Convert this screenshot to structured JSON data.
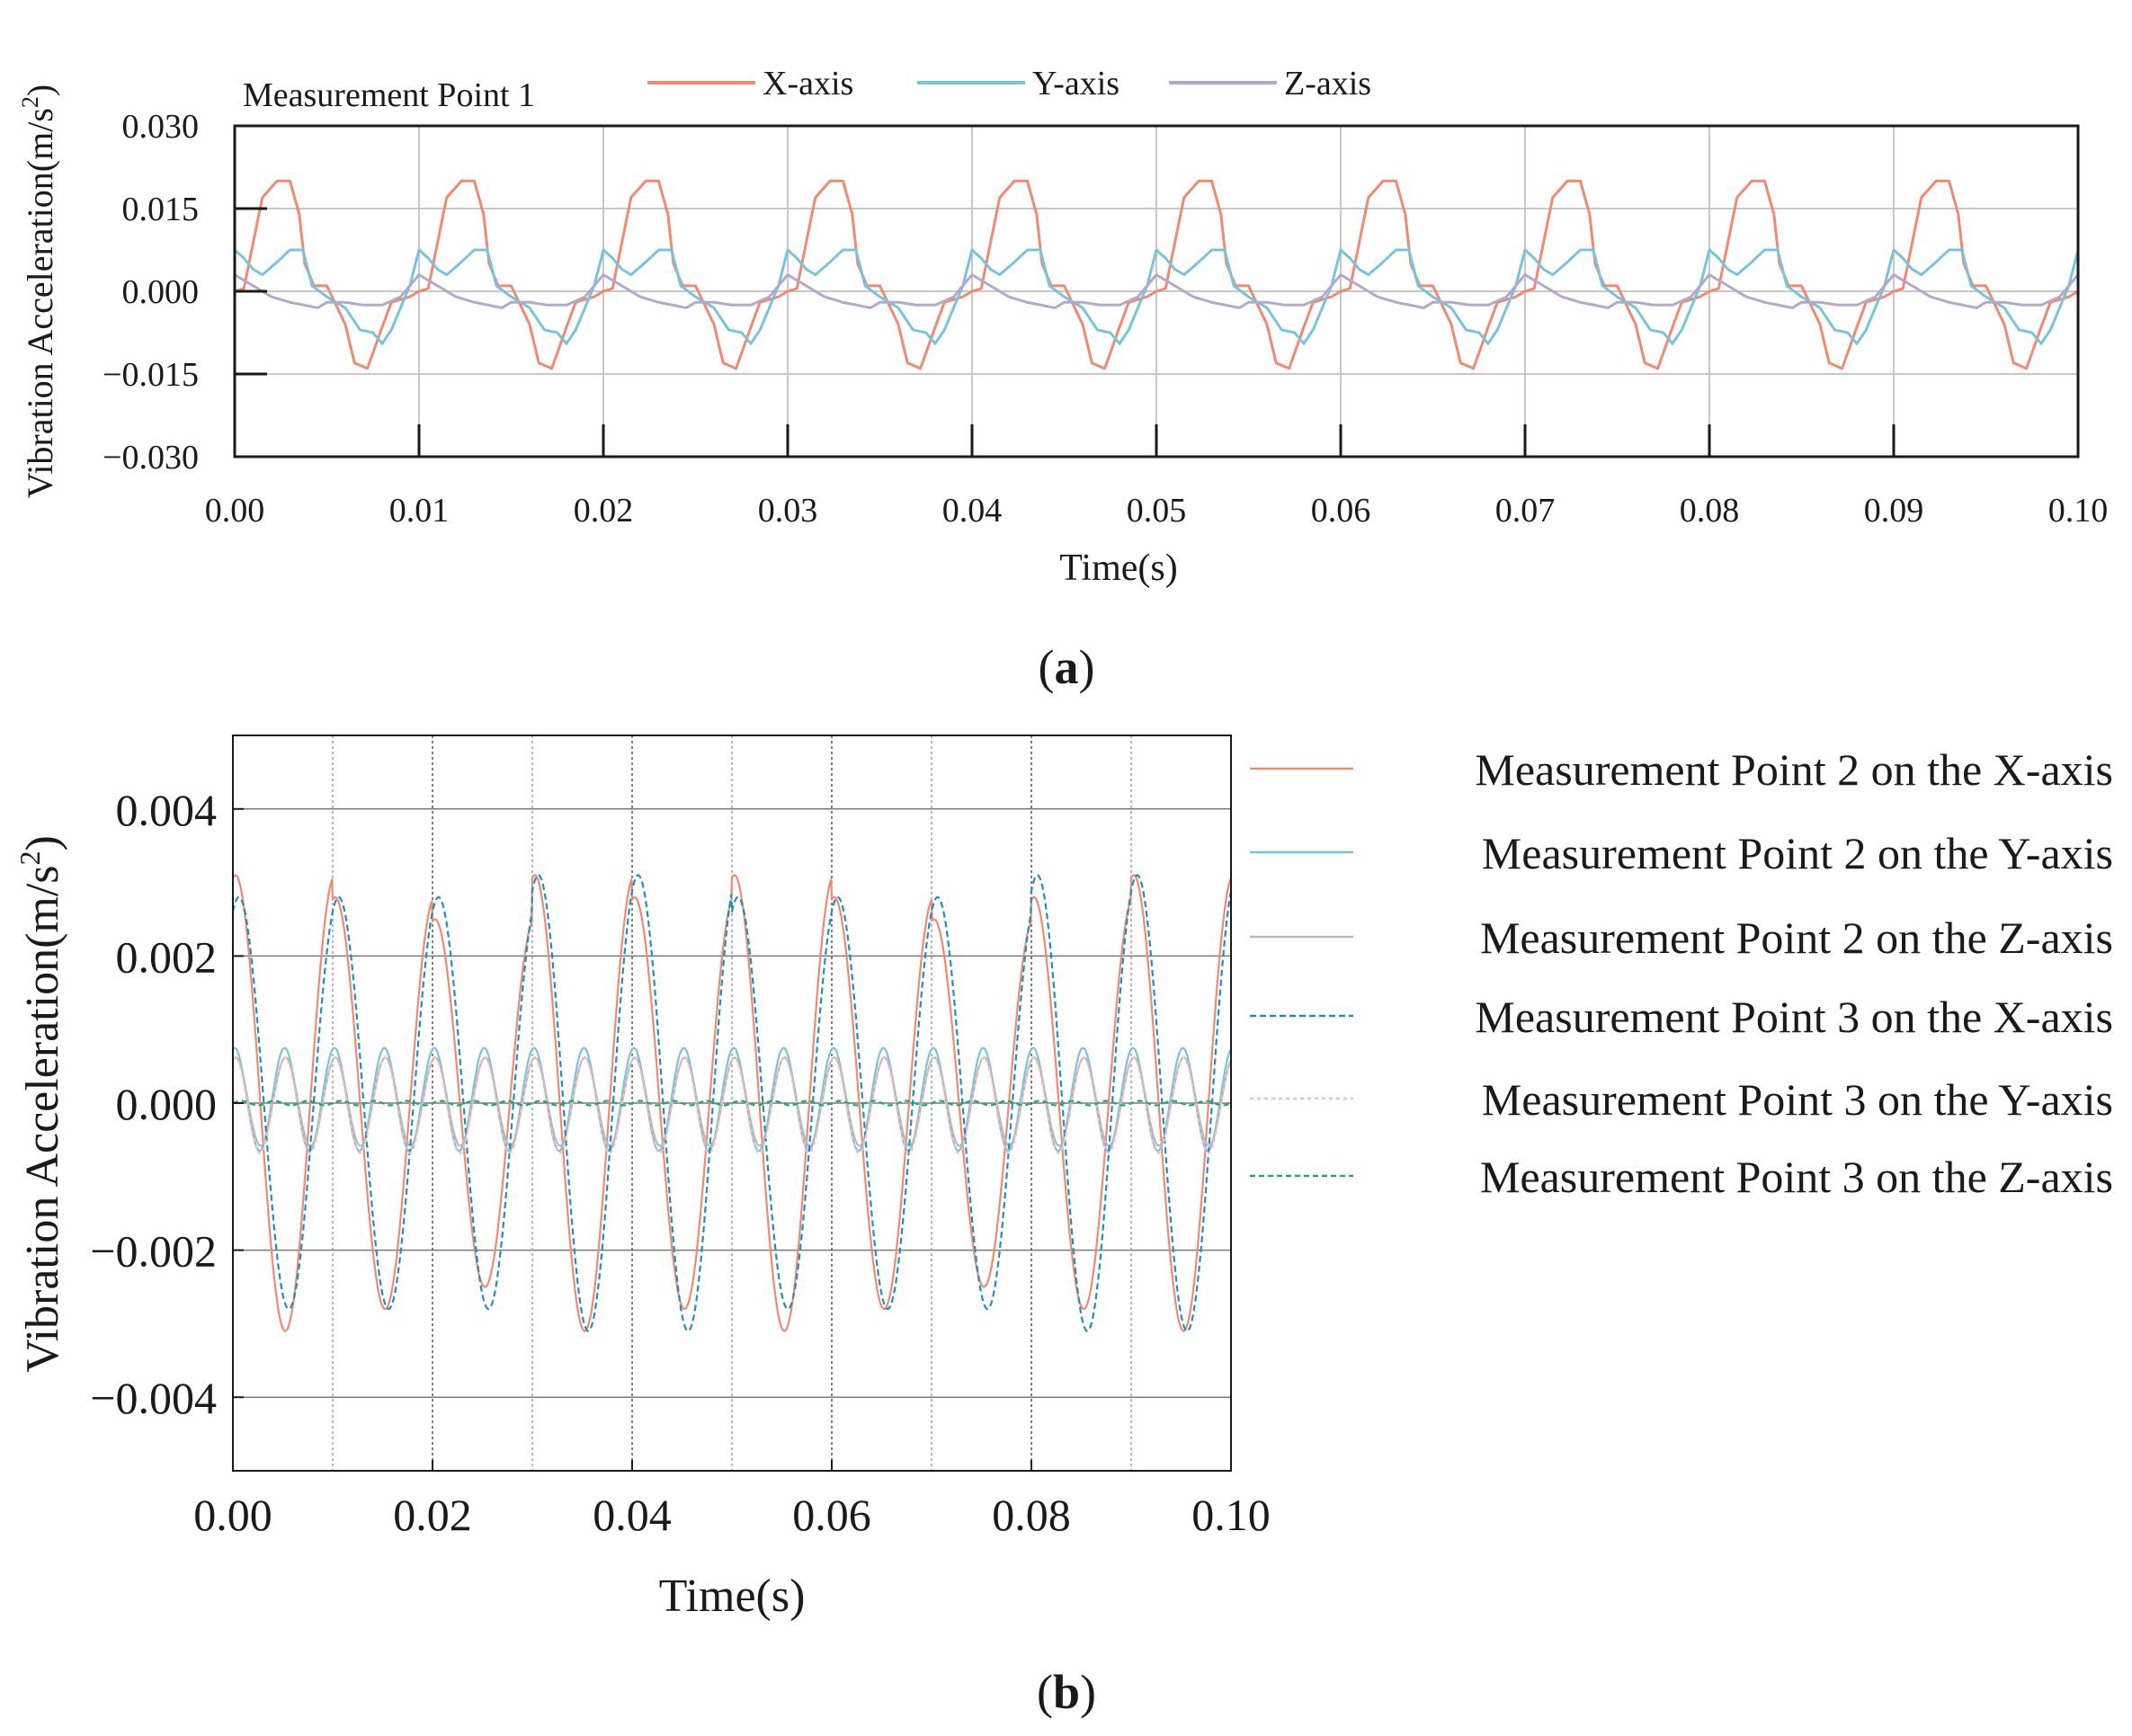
{
  "panel_a_caption": "a",
  "panel_b_caption": "b",
  "chart_data": [
    {
      "id": "a",
      "type": "line",
      "inline_title": "Measurement Point 1",
      "xlabel": "Time(s)",
      "ylabel_main": "Vibration Acceleration(m/s",
      "ylabel_sup": "2",
      "ylabel_close": ")",
      "xlim": [
        0,
        0.1
      ],
      "ylim": [
        -0.03,
        0.03
      ],
      "xticks": [
        "0.00",
        "0.01",
        "0.02",
        "0.03",
        "0.04",
        "0.05",
        "0.06",
        "0.07",
        "0.08",
        "0.09",
        "0.10"
      ],
      "yticks": [
        "0.030",
        "0.015",
        "0.000",
        "−0.015",
        "−0.030"
      ],
      "ytick_values": [
        0.03,
        0.015,
        0,
        -0.015,
        -0.03
      ],
      "grid": true,
      "period": 0.01,
      "series": [
        {
          "name": "X-axis",
          "color": "#f08a70",
          "dash": "",
          "cycle_t": [
            0,
            0.0005,
            0.0015,
            0.0023,
            0.003,
            0.0035,
            0.0038,
            0.0043,
            0.005,
            0.006,
            0.0065,
            0.0072,
            0.008,
            0.0085,
            0.0095,
            0.01
          ],
          "cycle_y": [
            0,
            0.0005,
            0.017,
            0.02,
            0.02,
            0.014,
            0.005,
            0.001,
            0.001,
            -0.006,
            -0.013,
            -0.014,
            -0.0065,
            -0.002,
            -0.001,
            0
          ]
        },
        {
          "name": "Y-axis",
          "color": "#78c4de",
          "dash": "",
          "cycle_t": [
            0,
            0.0005,
            0.001,
            0.0015,
            0.0022,
            0.003,
            0.0037,
            0.0042,
            0.005,
            0.006,
            0.0068,
            0.0075,
            0.008,
            0.0085,
            0.009,
            0.0095,
            0.01
          ],
          "cycle_y": [
            0.0075,
            0.006,
            0.004,
            0.003,
            0.005,
            0.0075,
            0.0075,
            0.001,
            -0.001,
            -0.003,
            -0.007,
            -0.0075,
            -0.0095,
            -0.007,
            -0.003,
            0.001,
            0.0075
          ]
        },
        {
          "name": "Z-axis",
          "color": "#b6a8cc",
          "dash": "",
          "cycle_t": [
            0,
            0.001,
            0.002,
            0.003,
            0.0045,
            0.005,
            0.006,
            0.007,
            0.008,
            0.009,
            0.0095,
            0.01
          ],
          "cycle_y": [
            0.003,
            0.001,
            -0.001,
            -0.002,
            -0.003,
            -0.002,
            -0.002,
            -0.0025,
            -0.0025,
            -0.001,
            0.001,
            0.003
          ]
        }
      ]
    },
    {
      "id": "b",
      "type": "line",
      "xlabel": "Time(s)",
      "ylabel_main": "Vibration Acceleration(m/s",
      "ylabel_sup": "2",
      "ylabel_close": ")",
      "xlim": [
        0,
        0.1
      ],
      "ylim": [
        -0.005,
        0.005
      ],
      "xticks": [
        "0.00",
        "0.02",
        "0.04",
        "0.06",
        "0.08",
        "0.10"
      ],
      "yticks": [
        "0.004",
        "0.002",
        "0.000",
        "−0.002",
        "−0.004"
      ],
      "ytick_values": [
        0.004,
        0.002,
        0,
        -0.002,
        -0.004
      ],
      "grid": true,
      "period": 0.01,
      "legend_position": "right",
      "series": [
        {
          "name": "Measurement Point 2 on the X-axis",
          "color": "#f08a70",
          "dash": "",
          "kind": "sine",
          "amplitudes": [
            0.0031,
            0.0028,
            0.0025,
            0.0031,
            0.0028,
            0.0031,
            0.0028,
            0.0025,
            0.0028,
            0.0031
          ],
          "phase": 0.00025,
          "offset": 0
        },
        {
          "name": "Measurement Point 2 on the Y-axis",
          "color": "#78c4de",
          "dash": "",
          "kind": "sine2",
          "amplitudes": [
            0.0007,
            0.0007,
            0.0007,
            0.0007,
            0.0007,
            0.0007,
            0.0007,
            0.0007,
            0.0007,
            0.0007
          ],
          "phase": 0.0002,
          "offset": 5e-05
        },
        {
          "name": "Measurement Point 2 on the Z-axis",
          "color": "#b8b8b8",
          "dash": "",
          "kind": "sine2",
          "amplitudes": [
            0.0006,
            0.0006,
            0.0006,
            0.0006,
            0.0006,
            0.0006,
            0.0006,
            0.0006,
            0.0006,
            0.0006
          ],
          "phase": 0.0001,
          "offset": 2e-05
        },
        {
          "name": "Measurement Point 3 on the X-axis",
          "color": "#1f8fc0",
          "dash": "7,4",
          "kind": "sine",
          "amplitudes": [
            0.0028,
            0.0028,
            0.0028,
            0.0031,
            0.0031,
            0.0028,
            0.0028,
            0.0028,
            0.0031,
            0.0031
          ],
          "phase": -0.0001,
          "offset": 0
        },
        {
          "name": "Measurement Point 3 on the Y-axis",
          "color": "#f4bcc4",
          "dash": "4,4",
          "kind": "sine2",
          "amplitudes": [
            0.00065,
            0.00065,
            0.00065,
            0.00065,
            0.00065,
            0.00065,
            0.00065,
            0.00065,
            0.00065,
            0.00065
          ],
          "phase": 0.00015,
          "offset": -3e-05
        },
        {
          "name": "Measurement Point 3 on the Z-axis",
          "color": "#22aa66",
          "dash": "6,4",
          "kind": "flat",
          "amplitudes": [
            3e-05,
            3e-05,
            3e-05,
            3e-05,
            3e-05,
            3e-05,
            3e-05,
            3e-05,
            3e-05,
            3e-05
          ],
          "phase": 0,
          "offset": 0
        }
      ]
    }
  ]
}
